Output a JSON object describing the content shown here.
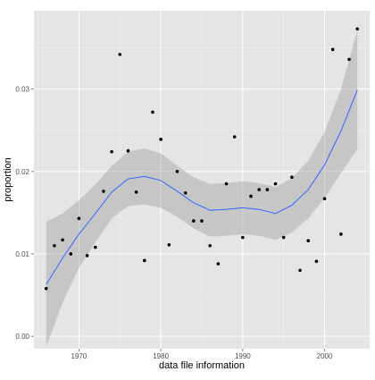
{
  "chart_data": {
    "type": "scatter",
    "title": "",
    "xlabel": "data file information",
    "ylabel": "proportion",
    "xlim": [
      1964.5,
      2005.5
    ],
    "ylim": [
      -0.0015,
      0.0395
    ],
    "x_ticks": [
      1970,
      1980,
      1990,
      2000
    ],
    "x_tick_labels": [
      "1970",
      "1980",
      "1990",
      "2000"
    ],
    "y_ticks": [
      0.0,
      0.01,
      0.02,
      0.03
    ],
    "y_tick_labels": [
      "0.00",
      "0.01",
      "0.02",
      "0.03"
    ],
    "grid": true,
    "panel_background": "#e5e5e5",
    "grid_color": "#ffffff",
    "point_color": "#000000",
    "smooth_color": "#3366ff",
    "ribbon_color": "#999999",
    "points": [
      {
        "x": 1966,
        "y": 0.0058
      },
      {
        "x": 1967,
        "y": 0.011
      },
      {
        "x": 1968,
        "y": 0.0117
      },
      {
        "x": 1969,
        "y": 0.01
      },
      {
        "x": 1970,
        "y": 0.0143
      },
      {
        "x": 1971,
        "y": 0.0098
      },
      {
        "x": 1972,
        "y": 0.0108
      },
      {
        "x": 1973,
        "y": 0.0176
      },
      {
        "x": 1974,
        "y": 0.0224
      },
      {
        "x": 1975,
        "y": 0.0342
      },
      {
        "x": 1976,
        "y": 0.0225
      },
      {
        "x": 1977,
        "y": 0.0175
      },
      {
        "x": 1978,
        "y": 0.0092
      },
      {
        "x": 1979,
        "y": 0.0272
      },
      {
        "x": 1980,
        "y": 0.0239
      },
      {
        "x": 1981,
        "y": 0.0111
      },
      {
        "x": 1982,
        "y": 0.02
      },
      {
        "x": 1983,
        "y": 0.0174
      },
      {
        "x": 1984,
        "y": 0.014
      },
      {
        "x": 1985,
        "y": 0.014
      },
      {
        "x": 1986,
        "y": 0.011
      },
      {
        "x": 1987,
        "y": 0.0088
      },
      {
        "x": 1988,
        "y": 0.0185
      },
      {
        "x": 1989,
        "y": 0.0242
      },
      {
        "x": 1990,
        "y": 0.012
      },
      {
        "x": 1991,
        "y": 0.017
      },
      {
        "x": 1992,
        "y": 0.0178
      },
      {
        "x": 1993,
        "y": 0.0178
      },
      {
        "x": 1994,
        "y": 0.0185
      },
      {
        "x": 1995,
        "y": 0.012
      },
      {
        "x": 1996,
        "y": 0.0193
      },
      {
        "x": 1997,
        "y": 0.008
      },
      {
        "x": 1998,
        "y": 0.0116
      },
      {
        "x": 1999,
        "y": 0.0091
      },
      {
        "x": 2000,
        "y": 0.0167
      },
      {
        "x": 2001,
        "y": 0.0348
      },
      {
        "x": 2002,
        "y": 0.0124
      },
      {
        "x": 2003,
        "y": 0.0336
      },
      {
        "x": 2004,
        "y": 0.0373
      }
    ],
    "smooth": [
      {
        "x": 1966,
        "y": 0.0063,
        "lo": -0.0013,
        "hi": 0.0139
      },
      {
        "x": 1968,
        "y": 0.0095,
        "lo": 0.0041,
        "hi": 0.0149
      },
      {
        "x": 1970,
        "y": 0.0124,
        "lo": 0.0083,
        "hi": 0.0165
      },
      {
        "x": 1972,
        "y": 0.0149,
        "lo": 0.0114,
        "hi": 0.0184
      },
      {
        "x": 1974,
        "y": 0.0175,
        "lo": 0.0143,
        "hi": 0.0207
      },
      {
        "x": 1976,
        "y": 0.0191,
        "lo": 0.0158,
        "hi": 0.0224
      },
      {
        "x": 1978,
        "y": 0.0194,
        "lo": 0.016,
        "hi": 0.0228
      },
      {
        "x": 1980,
        "y": 0.0189,
        "lo": 0.0156,
        "hi": 0.0222
      },
      {
        "x": 1982,
        "y": 0.0176,
        "lo": 0.0145,
        "hi": 0.0207
      },
      {
        "x": 1984,
        "y": 0.0162,
        "lo": 0.0131,
        "hi": 0.0193
      },
      {
        "x": 1986,
        "y": 0.0153,
        "lo": 0.0121,
        "hi": 0.0185
      },
      {
        "x": 1988,
        "y": 0.0154,
        "lo": 0.0122,
        "hi": 0.0186
      },
      {
        "x": 1990,
        "y": 0.0156,
        "lo": 0.0124,
        "hi": 0.0188
      },
      {
        "x": 1992,
        "y": 0.0154,
        "lo": 0.0122,
        "hi": 0.0186
      },
      {
        "x": 1994,
        "y": 0.0149,
        "lo": 0.0117,
        "hi": 0.0181
      },
      {
        "x": 1996,
        "y": 0.0159,
        "lo": 0.0126,
        "hi": 0.0192
      },
      {
        "x": 1998,
        "y": 0.0178,
        "lo": 0.0143,
        "hi": 0.0213
      },
      {
        "x": 2000,
        "y": 0.0208,
        "lo": 0.0168,
        "hi": 0.0248
      },
      {
        "x": 2002,
        "y": 0.0249,
        "lo": 0.0198,
        "hi": 0.03
      },
      {
        "x": 2004,
        "y": 0.0299,
        "lo": 0.0227,
        "hi": 0.0371
      }
    ]
  }
}
